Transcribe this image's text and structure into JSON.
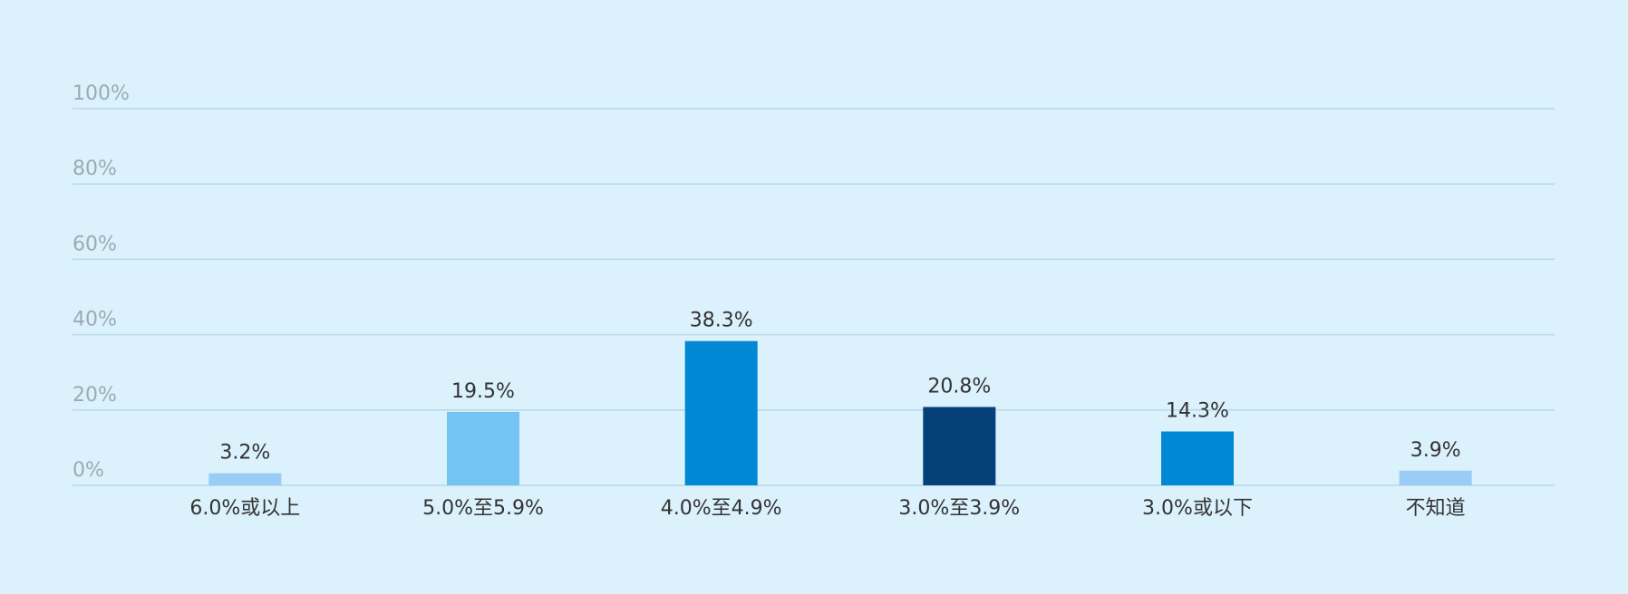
{
  "chart_data": {
    "type": "bar",
    "categories": [
      "6.0%或以上",
      "5.0%至5.9%",
      "4.0%至4.9%",
      "3.0%至3.9%",
      "3.0%或以下",
      "不知道"
    ],
    "values": [
      3.2,
      19.5,
      38.3,
      20.8,
      14.3,
      3.9
    ],
    "value_labels": [
      "3.2%",
      "19.5%",
      "38.3%",
      "20.8%",
      "14.3%",
      "3.9%"
    ],
    "colors": [
      "#99cdf5",
      "#73c4f2",
      "#0088d4",
      "#054078",
      "#0088d4",
      "#99cdf5"
    ],
    "ylim": [
      0,
      100
    ],
    "yticks": [
      {
        "value": 0,
        "label": "0%"
      },
      {
        "value": 20,
        "label": "20%"
      },
      {
        "value": 40,
        "label": "40%"
      },
      {
        "value": 60,
        "label": "60%"
      },
      {
        "value": 80,
        "label": "80%"
      },
      {
        "value": 100,
        "label": "100%"
      }
    ],
    "grid": true
  }
}
